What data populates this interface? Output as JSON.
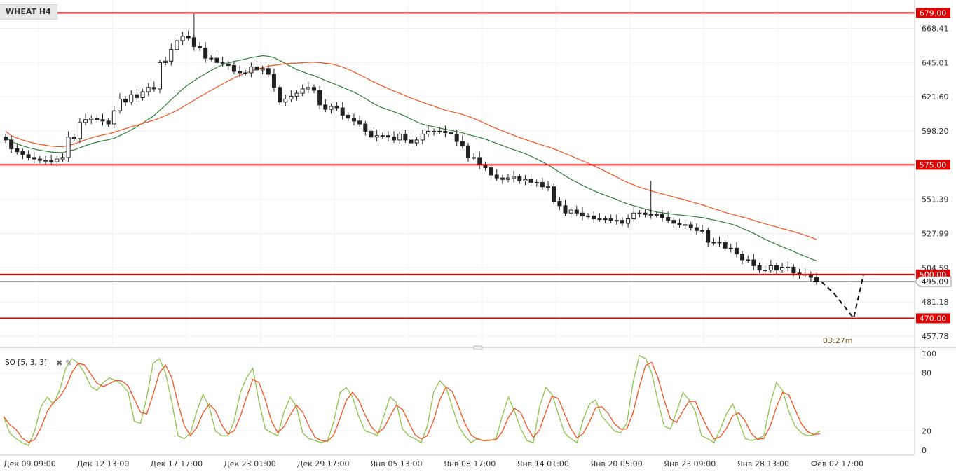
{
  "header": {
    "symbol": "WHEAT H4"
  },
  "indicator": {
    "label": "SO [5, 3, 3]",
    "close_icon": "close-icon",
    "settings_icon": "wrench-icon"
  },
  "timer": "03:27m",
  "chart_data": {
    "type": "candlestick",
    "symbol": "WHEAT H4",
    "price_axis": {
      "ylim": [
        452,
        684
      ],
      "ticks": [
        "668.41",
        "645.01",
        "621.60",
        "598.20",
        "551.39",
        "527.99",
        "504.59",
        "481.18",
        "457.78"
      ]
    },
    "time_axis": [
      "Дек 09 09:00",
      "Дек 12 13:00",
      "Дек 17 17:00",
      "Дек 23 01:00",
      "Дек 29 17:00",
      "Янв 05 13:00",
      "Янв 08 17:00",
      "Янв 14 01:00",
      "Янв 20 05:00",
      "Янв 23 09:00",
      "Янв 28 13:00",
      "Фев 02 17:00"
    ],
    "levels": [
      {
        "label": "679.00",
        "value": 679.0,
        "color": "#e00000"
      },
      {
        "label": "575.00",
        "value": 575.0,
        "color": "#e00000"
      },
      {
        "label": "500.00",
        "value": 500.0,
        "color": "#e00000"
      },
      {
        "label": "470.00",
        "value": 470.0,
        "color": "#e00000"
      }
    ],
    "current_price": {
      "label": "495.09",
      "value": 495.09
    },
    "projection": [
      [
        0,
        495.09
      ],
      [
        1,
        495.09
      ],
      [
        2,
        487
      ],
      [
        3,
        470
      ],
      [
        4,
        500
      ]
    ],
    "candles_close": [
      592,
      586,
      584,
      582,
      580,
      579,
      578,
      578,
      577,
      579,
      580,
      594,
      593,
      604,
      606,
      607,
      606,
      605,
      603,
      612,
      620,
      618,
      623,
      621,
      625,
      628,
      627,
      645,
      646,
      654,
      660,
      663,
      662,
      656,
      655,
      648,
      648,
      645,
      644,
      643,
      639,
      638,
      638,
      642,
      640,
      641,
      637,
      628,
      618,
      620,
      622,
      624,
      627,
      628,
      626,
      616,
      613,
      615,
      614,
      609,
      607,
      605,
      603,
      598,
      594,
      595,
      595,
      594,
      592,
      596,
      592,
      590,
      592,
      596,
      598,
      598,
      598,
      597,
      596,
      591,
      588,
      580,
      580,
      575,
      573,
      568,
      566,
      565,
      566,
      567,
      564,
      565,
      563,
      563,
      560,
      560,
      550,
      547,
      542,
      544,
      542,
      540,
      540,
      538,
      538,
      538,
      537,
      537,
      535,
      538,
      542,
      542,
      541,
      541,
      541,
      539,
      537,
      535,
      534,
      534,
      532,
      530,
      530,
      522,
      522,
      522,
      518,
      518,
      514,
      510,
      510,
      506,
      503,
      503,
      506,
      503,
      505,
      505,
      501,
      500,
      500,
      498,
      495
    ],
    "ma_green_start": 588,
    "ma_green_end": 511,
    "ma_red_start": 577,
    "ma_red_end": 519,
    "stochastic": {
      "label": "SO [5, 3, 3]",
      "ylim": [
        0,
        100
      ],
      "ticks": [
        "100",
        "80",
        "20",
        "0"
      ],
      "k": [
        35,
        18,
        12,
        8,
        5,
        20,
        45,
        55,
        48,
        62,
        85,
        95,
        90,
        80,
        66,
        62,
        70,
        75,
        72,
        68,
        60,
        30,
        28,
        55,
        90,
        95,
        80,
        50,
        15,
        12,
        18,
        40,
        58,
        45,
        20,
        15,
        15,
        30,
        60,
        75,
        85,
        50,
        22,
        18,
        15,
        40,
        55,
        45,
        18,
        12,
        10,
        8,
        10,
        30,
        60,
        65,
        55,
        35,
        20,
        18,
        15,
        35,
        55,
        50,
        22,
        15,
        12,
        8,
        25,
        60,
        72,
        65,
        45,
        25,
        15,
        8,
        12,
        10,
        10,
        12,
        35,
        55,
        40,
        22,
        10,
        8,
        45,
        65,
        58,
        38,
        18,
        12,
        8,
        32,
        48,
        52,
        35,
        28,
        20,
        18,
        28,
        70,
        98,
        95,
        80,
        50,
        25,
        22,
        40,
        60,
        52,
        40,
        15,
        12,
        8,
        22,
        38,
        48,
        30,
        12,
        10,
        12,
        15,
        48,
        70,
        62,
        40,
        25,
        18,
        15,
        16,
        20
      ]
    }
  }
}
